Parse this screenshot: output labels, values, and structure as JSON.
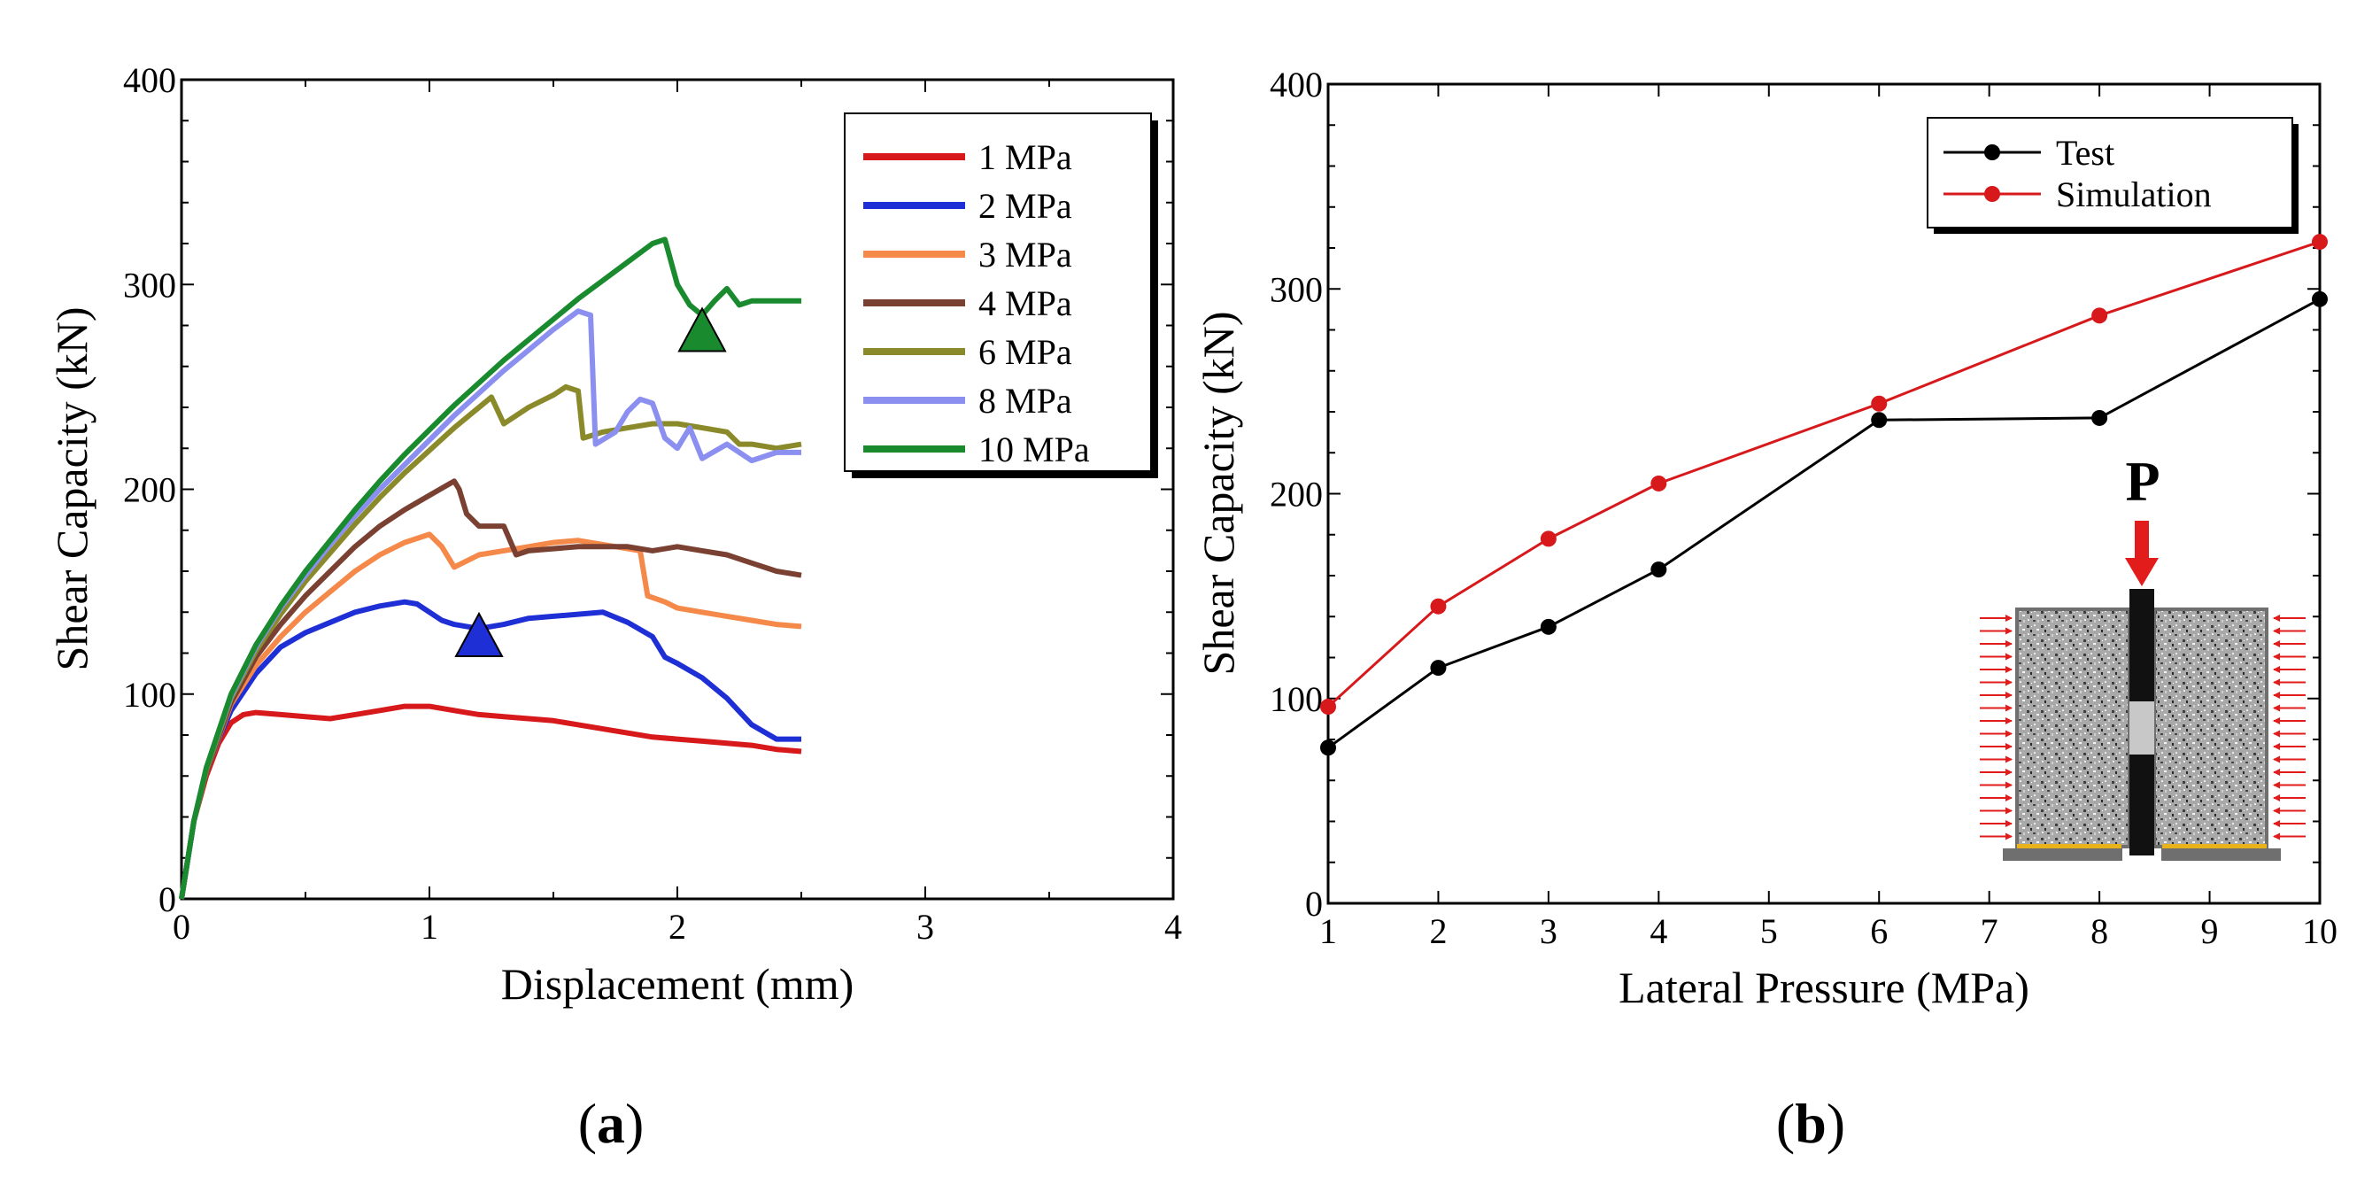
{
  "chart_data": [
    {
      "type": "line",
      "panel_label": {
        "open": "(",
        "letter": "a",
        "close": ")"
      },
      "xlabel": "Displacement (mm)",
      "ylabel": "Shear Capacity (kN)",
      "xlim": [
        0,
        4
      ],
      "ylim": [
        0,
        400
      ],
      "x_ticks": [
        "0",
        "1",
        "2",
        "3",
        "4"
      ],
      "y_ticks": [
        "0",
        "100",
        "200",
        "300",
        "400"
      ],
      "legend_position": "top-right",
      "series": [
        {
          "name": "1 MPa",
          "color": "#d7191c",
          "x": [
            0,
            0.05,
            0.1,
            0.15,
            0.2,
            0.25,
            0.3,
            0.4,
            0.5,
            0.6,
            0.7,
            0.8,
            0.9,
            1.0,
            1.1,
            1.2,
            1.3,
            1.4,
            1.5,
            1.6,
            1.7,
            1.8,
            1.9,
            2.0,
            2.1,
            2.2,
            2.3,
            2.4,
            2.5
          ],
          "y": [
            0,
            38,
            60,
            76,
            86,
            90,
            91,
            90,
            89,
            88,
            90,
            92,
            94,
            94,
            92,
            90,
            89,
            88,
            87,
            85,
            83,
            81,
            79,
            78,
            77,
            76,
            75,
            73,
            72
          ]
        },
        {
          "name": "2 MPa",
          "color": "#1f2fd6",
          "x": [
            0,
            0.05,
            0.1,
            0.15,
            0.2,
            0.3,
            0.4,
            0.5,
            0.6,
            0.7,
            0.8,
            0.9,
            0.95,
            1.0,
            1.05,
            1.1,
            1.2,
            1.3,
            1.4,
            1.5,
            1.6,
            1.7,
            1.8,
            1.9,
            1.95,
            2.0,
            2.1,
            2.2,
            2.3,
            2.4,
            2.5
          ],
          "y": [
            0,
            38,
            62,
            78,
            92,
            110,
            123,
            130,
            135,
            140,
            143,
            145,
            144,
            140,
            136,
            134,
            132,
            134,
            137,
            138,
            139,
            140,
            135,
            128,
            118,
            115,
            108,
            98,
            85,
            78,
            78
          ]
        },
        {
          "name": "3 MPa",
          "color": "#f4894a",
          "x": [
            0,
            0.05,
            0.1,
            0.2,
            0.3,
            0.4,
            0.5,
            0.6,
            0.7,
            0.8,
            0.9,
            1.0,
            1.05,
            1.1,
            1.2,
            1.3,
            1.4,
            1.5,
            1.6,
            1.7,
            1.8,
            1.85,
            1.88,
            1.95,
            2.0,
            2.1,
            2.2,
            2.3,
            2.4,
            2.5
          ],
          "y": [
            0,
            38,
            62,
            95,
            114,
            128,
            140,
            150,
            160,
            168,
            174,
            178,
            172,
            162,
            168,
            170,
            172,
            174,
            175,
            173,
            171,
            170,
            148,
            145,
            142,
            140,
            138,
            136,
            134,
            133
          ]
        },
        {
          "name": "4 MPa",
          "color": "#7a4032",
          "x": [
            0,
            0.05,
            0.1,
            0.2,
            0.3,
            0.4,
            0.5,
            0.6,
            0.7,
            0.8,
            0.9,
            1.0,
            1.1,
            1.12,
            1.15,
            1.2,
            1.3,
            1.35,
            1.4,
            1.6,
            1.8,
            1.9,
            2.0,
            2.1,
            2.2,
            2.3,
            2.4,
            2.5
          ],
          "y": [
            0,
            38,
            62,
            96,
            118,
            134,
            148,
            160,
            172,
            182,
            190,
            197,
            204,
            200,
            188,
            182,
            182,
            168,
            170,
            172,
            172,
            170,
            172,
            170,
            168,
            164,
            160,
            158
          ]
        },
        {
          "name": "6 MPa",
          "color": "#8a8a2a",
          "x": [
            0,
            0.05,
            0.1,
            0.2,
            0.3,
            0.4,
            0.5,
            0.6,
            0.7,
            0.8,
            0.9,
            1.0,
            1.1,
            1.2,
            1.25,
            1.3,
            1.4,
            1.5,
            1.55,
            1.6,
            1.62,
            1.7,
            1.8,
            1.9,
            2.0,
            2.1,
            2.2,
            2.25,
            2.3,
            2.4,
            2.5
          ],
          "y": [
            0,
            38,
            63,
            98,
            121,
            139,
            155,
            169,
            183,
            196,
            208,
            219,
            230,
            240,
            245,
            232,
            240,
            246,
            250,
            248,
            225,
            228,
            230,
            232,
            232,
            230,
            228,
            222,
            222,
            220,
            222
          ]
        },
        {
          "name": "8 MPa",
          "color": "#8b8ff0",
          "x": [
            0,
            0.05,
            0.1,
            0.2,
            0.3,
            0.4,
            0.5,
            0.6,
            0.7,
            0.8,
            0.9,
            1.0,
            1.1,
            1.2,
            1.3,
            1.4,
            1.5,
            1.6,
            1.65,
            1.67,
            1.75,
            1.8,
            1.85,
            1.9,
            1.95,
            2.0,
            2.05,
            2.1,
            2.2,
            2.3,
            2.4,
            2.5
          ],
          "y": [
            0,
            38,
            64,
            99,
            123,
            142,
            158,
            173,
            187,
            200,
            212,
            224,
            236,
            247,
            258,
            268,
            278,
            287,
            285,
            222,
            228,
            238,
            244,
            242,
            225,
            220,
            230,
            215,
            222,
            214,
            218,
            218
          ]
        },
        {
          "name": "10 MPa",
          "color": "#1a8a2e",
          "x": [
            0,
            0.05,
            0.1,
            0.2,
            0.3,
            0.4,
            0.5,
            0.6,
            0.7,
            0.8,
            0.9,
            1.0,
            1.1,
            1.2,
            1.3,
            1.4,
            1.5,
            1.6,
            1.7,
            1.8,
            1.9,
            1.95,
            2.0,
            2.05,
            2.1,
            2.15,
            2.2,
            2.25,
            2.3,
            2.4,
            2.5
          ],
          "y": [
            0,
            38,
            64,
            100,
            124,
            143,
            160,
            175,
            190,
            204,
            217,
            229,
            241,
            252,
            263,
            273,
            283,
            293,
            302,
            311,
            320,
            322,
            300,
            290,
            285,
            292,
            298,
            290,
            292,
            292,
            292
          ]
        }
      ],
      "markers": [
        {
          "shape": "triangle",
          "x": 1.2,
          "y": 128,
          "color": "#1f2fd6"
        },
        {
          "shape": "triangle",
          "x": 2.1,
          "y": 277,
          "color": "#1a8a2e"
        }
      ]
    },
    {
      "type": "line",
      "panel_label": {
        "open": "(",
        "letter": "b",
        "close": ")"
      },
      "xlabel": "Lateral Pressure (MPa)",
      "ylabel": "Shear Capacity (kN)",
      "xlim": [
        1,
        10
      ],
      "ylim": [
        0,
        400
      ],
      "x_ticks": [
        "1",
        "2",
        "3",
        "4",
        "5",
        "6",
        "7",
        "8",
        "9",
        "10"
      ],
      "y_ticks": [
        "0",
        "100",
        "200",
        "300",
        "400"
      ],
      "legend_position": "top-right",
      "series": [
        {
          "name": "Test",
          "color": "#000000",
          "x": [
            1,
            2,
            3,
            4,
            6,
            8,
            10
          ],
          "y": [
            76,
            115,
            135,
            163,
            236,
            237,
            295
          ]
        },
        {
          "name": "Simulation",
          "color": "#d7191c",
          "x": [
            1,
            2,
            3,
            4,
            6,
            8,
            10
          ],
          "y": [
            96,
            145,
            178,
            205,
            244,
            287,
            323
          ]
        }
      ],
      "inset": {
        "label": "P"
      }
    }
  ]
}
